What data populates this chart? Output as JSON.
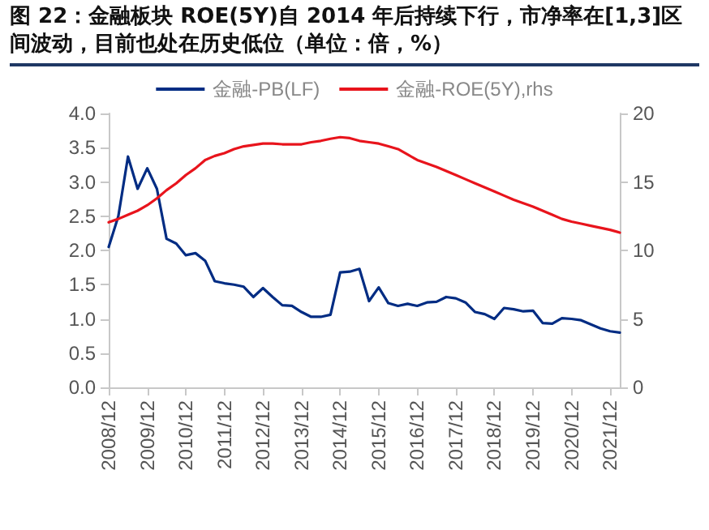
{
  "chart_data": {
    "type": "line",
    "title": "图 22：金融板块 ROE(5Y)自 2014 年后持续下行，市净率在[1,3]区间波动，目前也处在历史低位（单位：倍，%）",
    "categories": [
      "2008/12",
      null,
      null,
      null,
      "2009/12",
      null,
      null,
      null,
      "2010/12",
      null,
      null,
      null,
      "2011/12",
      null,
      null,
      null,
      "2012/12",
      null,
      null,
      null,
      "2013/12",
      null,
      null,
      null,
      "2014/12",
      null,
      null,
      null,
      "2015/12",
      null,
      null,
      null,
      "2016/12",
      null,
      null,
      null,
      "2017/12",
      null,
      null,
      null,
      "2018/12",
      null,
      null,
      null,
      "2019/12",
      null,
      null,
      null,
      "2020/12",
      null,
      null,
      null,
      "2021/12",
      null
    ],
    "series": [
      {
        "name": "金融-PB(LF)",
        "color": "#002c83",
        "values": [
          2.05,
          2.5,
          3.37,
          2.9,
          3.2,
          2.9,
          2.17,
          2.1,
          1.93,
          1.96,
          1.85,
          1.55,
          1.52,
          1.5,
          1.47,
          1.32,
          1.45,
          1.32,
          1.2,
          1.19,
          1.1,
          1.03,
          1.03,
          1.06,
          1.68,
          1.69,
          1.73,
          1.26,
          1.46,
          1.23,
          1.19,
          1.22,
          1.19,
          1.24,
          1.25,
          1.32,
          1.3,
          1.24,
          1.1,
          1.07,
          1.0,
          1.16,
          1.14,
          1.11,
          1.12,
          0.94,
          0.93,
          1.01,
          1.0,
          0.98,
          0.92,
          0.86,
          0.82,
          0.8
        ]
      },
      {
        "name": "金融-ROE(5Y),rhs",
        "color": "#e8141c",
        "axis": "y2",
        "values": [
          12.05,
          12.3,
          12.6,
          12.9,
          13.3,
          13.8,
          14.4,
          14.9,
          15.5,
          16.0,
          16.6,
          16.9,
          17.1,
          17.4,
          17.6,
          17.7,
          17.8,
          17.8,
          17.75,
          17.75,
          17.75,
          17.9,
          18.0,
          18.15,
          18.27,
          18.2,
          18.0,
          17.9,
          17.8,
          17.6,
          17.4,
          17.0,
          16.6,
          16.35,
          16.1,
          15.8,
          15.5,
          15.2,
          14.9,
          14.6,
          14.3,
          14.0,
          13.7,
          13.45,
          13.2,
          12.9,
          12.6,
          12.3,
          12.1,
          11.95,
          11.8,
          11.65,
          11.5,
          11.3
        ]
      }
    ],
    "ylim": [
      0,
      4
    ],
    "yticks": [
      {
        "value": 0,
        "label": "0.0"
      },
      {
        "value": 0.5,
        "label": "0.5"
      },
      {
        "value": 1,
        "label": "1.0"
      },
      {
        "value": 1.5,
        "label": "1.5"
      },
      {
        "value": 2,
        "label": "2.0"
      },
      {
        "value": 2.5,
        "label": "2.5"
      },
      {
        "value": 3,
        "label": "3.0"
      },
      {
        "value": 3.5,
        "label": "3.5"
      },
      {
        "value": 4,
        "label": "4.0"
      }
    ],
    "y2lim": [
      0,
      20
    ],
    "y2ticks": [
      0,
      5,
      10,
      15,
      20
    ],
    "legend": "top",
    "marker": "none",
    "line_style": "solid"
  }
}
